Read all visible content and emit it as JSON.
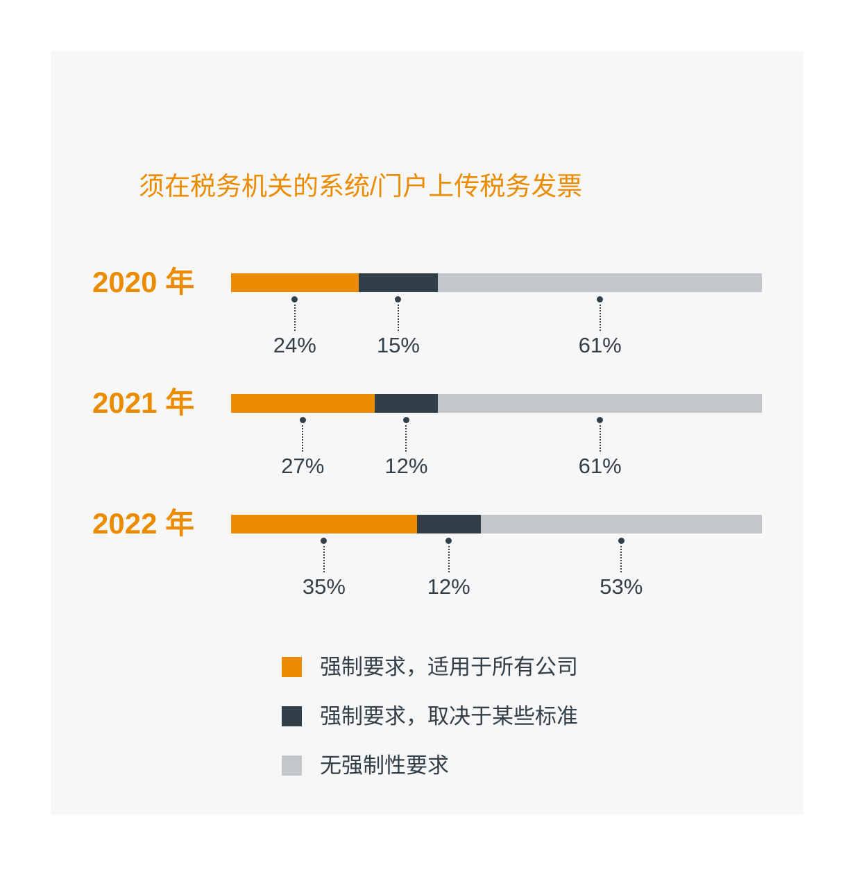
{
  "panel": {
    "background": "#f7f7f7"
  },
  "chart_data": {
    "type": "bar",
    "orientation": "horizontal",
    "stacked": true,
    "title": "须在税务机关的系统/门户上传税务发票",
    "title_color": "#eb8c00",
    "categories": [
      "2020 年",
      "2021 年",
      "2022 年"
    ],
    "category_color": "#eb8c00",
    "series": [
      {
        "name": "强制要求，适用于所有公司",
        "color": "#eb8c00",
        "values": [
          24,
          27,
          35
        ]
      },
      {
        "name": "强制要求，取决于某些标准",
        "color": "#333f48",
        "values": [
          15,
          12,
          12
        ]
      },
      {
        "name": "无强制性要求",
        "color": "#c3c7ca",
        "values": [
          61,
          61,
          53
        ]
      }
    ],
    "value_suffix": "%",
    "value_label_color": "#333f48",
    "xlim": [
      0,
      100
    ],
    "grid": false,
    "legend_position": "bottom"
  }
}
